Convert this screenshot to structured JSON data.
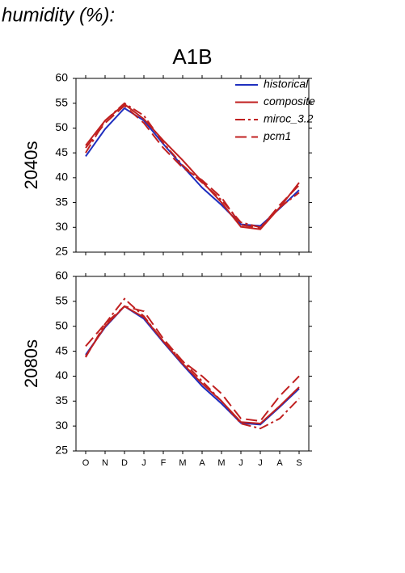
{
  "header": {
    "title": "humidity (%):",
    "subtitle": "A1B"
  },
  "chart_data": [
    {
      "type": "line",
      "ylabel": "2040s",
      "ylim": [
        25,
        60
      ],
      "yticks": [
        25,
        30,
        35,
        40,
        45,
        50,
        55,
        60
      ],
      "legend": "upper right",
      "series": [
        {
          "name": "historical",
          "color": "#1f2fbf",
          "dash": "solid",
          "values": [
            44.3,
            49.8,
            54,
            51.5,
            46.8,
            42.3,
            38,
            34.5,
            30.6,
            30.3,
            33.8,
            37.5
          ]
        },
        {
          "name": "composite",
          "color": "#c02020",
          "dash": "solid",
          "values": [
            46.5,
            51.5,
            54.8,
            51.8,
            47.5,
            43.5,
            39.2,
            35,
            30.1,
            29.6,
            34,
            39
          ]
        },
        {
          "name": "miroc_3.2",
          "color": "#c02020",
          "dash": "dashdot",
          "values": [
            45,
            51.5,
            55,
            52.5,
            47,
            42.5,
            39,
            35.5,
            31,
            30,
            34,
            37
          ]
        },
        {
          "name": "pcm1",
          "color": "#c02020",
          "dash": "dashed",
          "values": [
            46,
            51,
            54.5,
            51,
            46,
            42,
            39.5,
            36,
            30.5,
            29.8,
            34.5,
            38.5
          ]
        }
      ]
    },
    {
      "type": "line",
      "ylabel": "2080s",
      "ylim": [
        25,
        60
      ],
      "yticks": [
        25,
        30,
        35,
        40,
        45,
        50,
        55,
        60
      ],
      "categories": [
        "O",
        "N",
        "D",
        "J",
        "F",
        "M",
        "A",
        "M",
        "J",
        "J",
        "A",
        "S"
      ],
      "series": [
        {
          "color": "#1f2fbf",
          "dash": "solid",
          "values": [
            44.3,
            49.8,
            54,
            51.5,
            46.8,
            42.3,
            38,
            34.5,
            30.6,
            30.3,
            33.8,
            37.5
          ]
        },
        {
          "color": "#c02020",
          "dash": "solid",
          "values": [
            44,
            50,
            54,
            51.8,
            47,
            42.5,
            38.5,
            35,
            30.8,
            30.5,
            34,
            37.8
          ]
        },
        {
          "color": "#c02020",
          "dash": "dashdot",
          "values": [
            43.8,
            50.5,
            55.5,
            52,
            47,
            43,
            39,
            35,
            30.5,
            29.5,
            31.5,
            35.5
          ]
        },
        {
          "color": "#c02020",
          "dash": "dashed",
          "values": [
            46,
            50.5,
            54,
            53,
            47.5,
            43,
            40,
            36.5,
            31.5,
            31,
            36,
            40
          ]
        }
      ]
    }
  ]
}
